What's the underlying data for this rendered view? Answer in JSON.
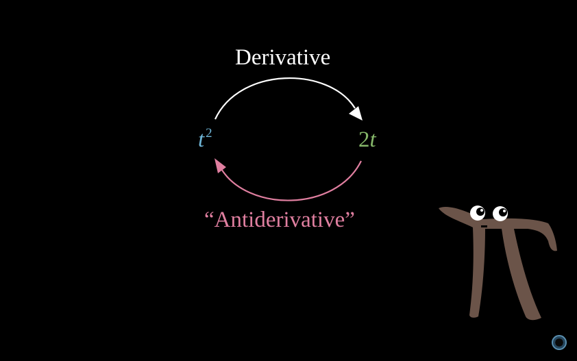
{
  "diagram": {
    "top_arrow_label": "Derivative",
    "bottom_arrow_label": "“Antiderivative”",
    "left_expr": {
      "base": "t",
      "exponent": "2"
    },
    "right_expr": {
      "coefficient": "2",
      "variable": "t"
    }
  },
  "colors": {
    "background": "#000000",
    "derivative": "#ffffff",
    "antiderivative": "#e07fa0",
    "left_expr": "#6fb5d6",
    "right_expr": "#86b86a",
    "pi_body": "#6b5449",
    "pi_eye_white": "#ffffff",
    "pi_pupil": "#000000"
  },
  "icons": {
    "mascot": "pi-creature-icon",
    "corner_badge": "circle-badge-icon"
  }
}
